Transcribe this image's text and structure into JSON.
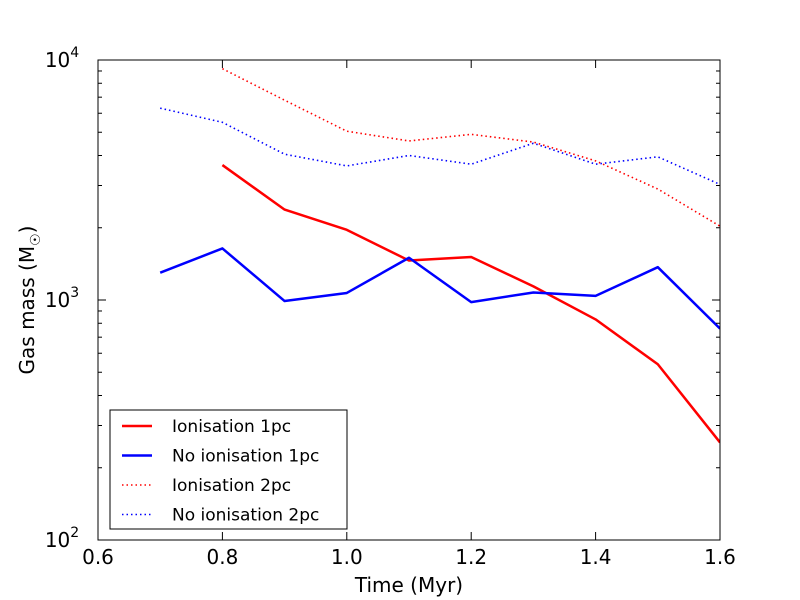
{
  "chart_data": {
    "type": "line",
    "title": "",
    "xlabel": "Time (Myr)",
    "ylabel_main": "Gas mass (M",
    "ylabel_sub": "☉",
    "ylabel_close": ")",
    "xlim": [
      0.6,
      1.6
    ],
    "ylim": [
      100,
      10000
    ],
    "yscale": "log",
    "grid": false,
    "legend_position": "lower-left",
    "x_ticks": [
      {
        "value": 0.6,
        "label": "0.6"
      },
      {
        "value": 0.8,
        "label": "0.8"
      },
      {
        "value": 1.0,
        "label": "1.0"
      },
      {
        "value": 1.2,
        "label": "1.2"
      },
      {
        "value": 1.4,
        "label": "1.4"
      },
      {
        "value": 1.6,
        "label": "1.6"
      }
    ],
    "y_ticks": [
      {
        "value": 100,
        "base": "10",
        "exp": "2"
      },
      {
        "value": 1000,
        "base": "10",
        "exp": "3"
      },
      {
        "value": 10000,
        "base": "10",
        "exp": "4"
      }
    ],
    "series": [
      {
        "name": "Ionisation 1pc",
        "color": "#ff0000",
        "style": "solid",
        "x": [
          0.8,
          0.9,
          1.0,
          1.1,
          1.2,
          1.3,
          1.4,
          1.5,
          1.6
        ],
        "y": [
          3650,
          2380,
          1960,
          1460,
          1510,
          1140,
          830,
          540,
          255
        ]
      },
      {
        "name": "No ionisation 1pc",
        "color": "#0000ff",
        "style": "solid",
        "x": [
          0.7,
          0.8,
          0.9,
          1.0,
          1.1,
          1.2,
          1.3,
          1.4,
          1.5,
          1.6
        ],
        "y": [
          1300,
          1640,
          990,
          1070,
          1500,
          980,
          1075,
          1040,
          1370,
          760
        ]
      },
      {
        "name": "Ionisation 2pc",
        "color": "#ff0000",
        "style": "dotted",
        "x": [
          0.8,
          0.9,
          1.0,
          1.1,
          1.2,
          1.3,
          1.4,
          1.5,
          1.6
        ],
        "y": [
          9200,
          6800,
          5050,
          4600,
          4900,
          4550,
          3800,
          2900,
          2030
        ]
      },
      {
        "name": "No ionisation 2pc",
        "color": "#0000ff",
        "style": "dotted",
        "x": [
          0.7,
          0.8,
          0.9,
          1.0,
          1.1,
          1.2,
          1.3,
          1.4,
          1.5,
          1.6
        ],
        "y": [
          6300,
          5500,
          4050,
          3620,
          4000,
          3680,
          4500,
          3680,
          3950,
          3030
        ]
      }
    ]
  }
}
